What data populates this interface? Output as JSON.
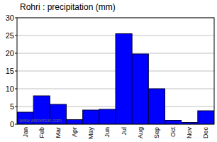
{
  "chart_data": {
    "type": "bar",
    "title": "Rohri : precipitation (mm)",
    "categories": [
      "Jan",
      "Feb",
      "Mar",
      "Apr",
      "May",
      "Jun",
      "Jul",
      "Aug",
      "Sep",
      "Oct",
      "Nov",
      "Dec"
    ],
    "values": [
      3.4,
      8,
      5.6,
      1.3,
      4,
      4.2,
      25.5,
      19.8,
      10,
      1.1,
      0.5,
      3.8
    ],
    "color": "#0000ff",
    "ylim": [
      0,
      30
    ],
    "yticks": [
      0,
      5,
      10,
      15,
      20,
      25,
      30
    ],
    "grid": true,
    "annotation": "www.allmetsat.com"
  }
}
